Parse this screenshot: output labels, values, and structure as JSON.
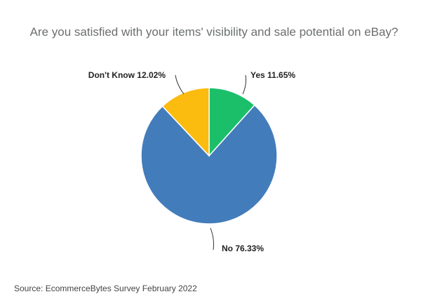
{
  "chart_data": {
    "type": "pie",
    "title": "Are you satisfied with your items' visibility and sale potential on eBay?",
    "slices": [
      {
        "label": "Yes",
        "value": 11.65,
        "display": "Yes 11.65%",
        "color": "#1bbf6a"
      },
      {
        "label": "No",
        "value": 76.33,
        "display": "No 76.33%",
        "color": "#437cba"
      },
      {
        "label": "Don't Know",
        "value": 12.02,
        "display": "Don't Know 12.02%",
        "color": "#fbbb0f"
      }
    ]
  },
  "source": "Source: EcommerceBytes Survey February 2022"
}
